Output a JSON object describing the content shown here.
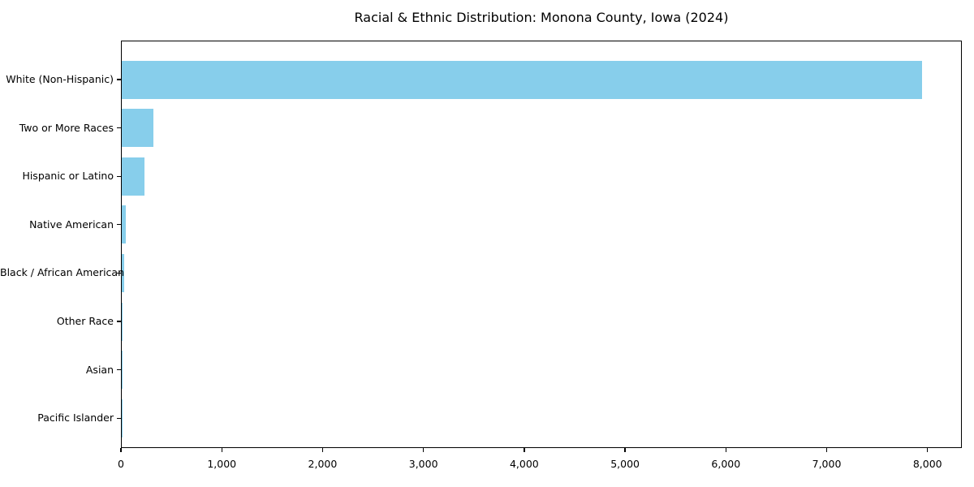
{
  "page": {
    "background_color": "#ffffff",
    "text_color": "#000000"
  },
  "chart_data": {
    "type": "bar",
    "orientation": "horizontal",
    "title": "Racial & Ethnic Distribution: Monona County, Iowa (2024)",
    "categories": [
      "White (Non-Hispanic)",
      "Two or More Races",
      "Hispanic or Latino",
      "Native American",
      "Black / African American",
      "Other Race",
      "Asian",
      "Pacific Islander"
    ],
    "values": [
      7940,
      315,
      225,
      40,
      25,
      5,
      3,
      1
    ],
    "xlabel": "",
    "ylabel": "",
    "xlim": [
      0,
      8340
    ],
    "xticks": [
      0,
      1000,
      2000,
      3000,
      4000,
      5000,
      6000,
      7000,
      8000
    ],
    "xtick_labels": [
      "0",
      "1,000",
      "2,000",
      "3,000",
      "4,000",
      "5,000",
      "6,000",
      "7,000",
      "8,000"
    ],
    "bar_color": "#87CEEB",
    "axis_color": "#000000",
    "grid": false,
    "legend": "none"
  }
}
